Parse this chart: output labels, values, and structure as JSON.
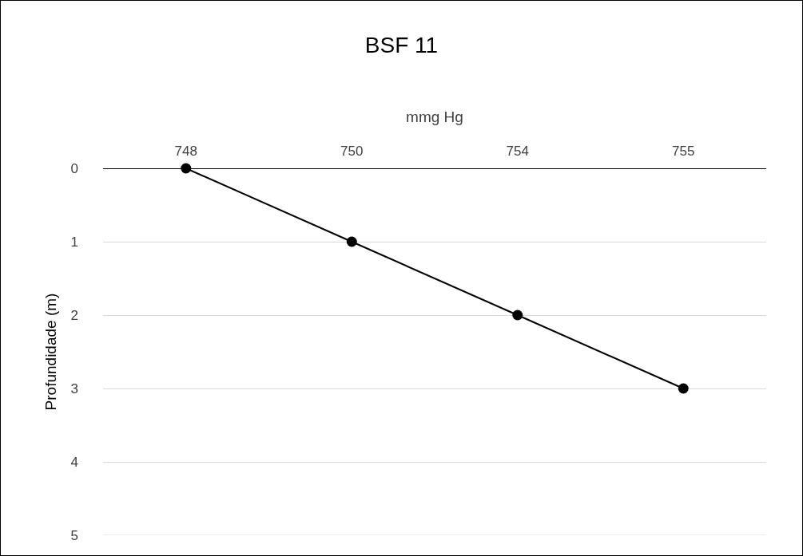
{
  "chart_data": {
    "type": "line",
    "title": "BSF 11",
    "xlabel": "mmg Hg",
    "ylabel": "Profundidade (m)",
    "categories": [
      "748",
      "750",
      "754",
      "755"
    ],
    "series": [
      {
        "color": "#000000",
        "values": [
          0,
          1,
          2,
          3
        ]
      }
    ],
    "ylim": [
      5,
      0
    ],
    "yticks": [
      0,
      1,
      2,
      3,
      4,
      5
    ],
    "grid": "y",
    "marker": "circle",
    "line_style": "solid"
  }
}
